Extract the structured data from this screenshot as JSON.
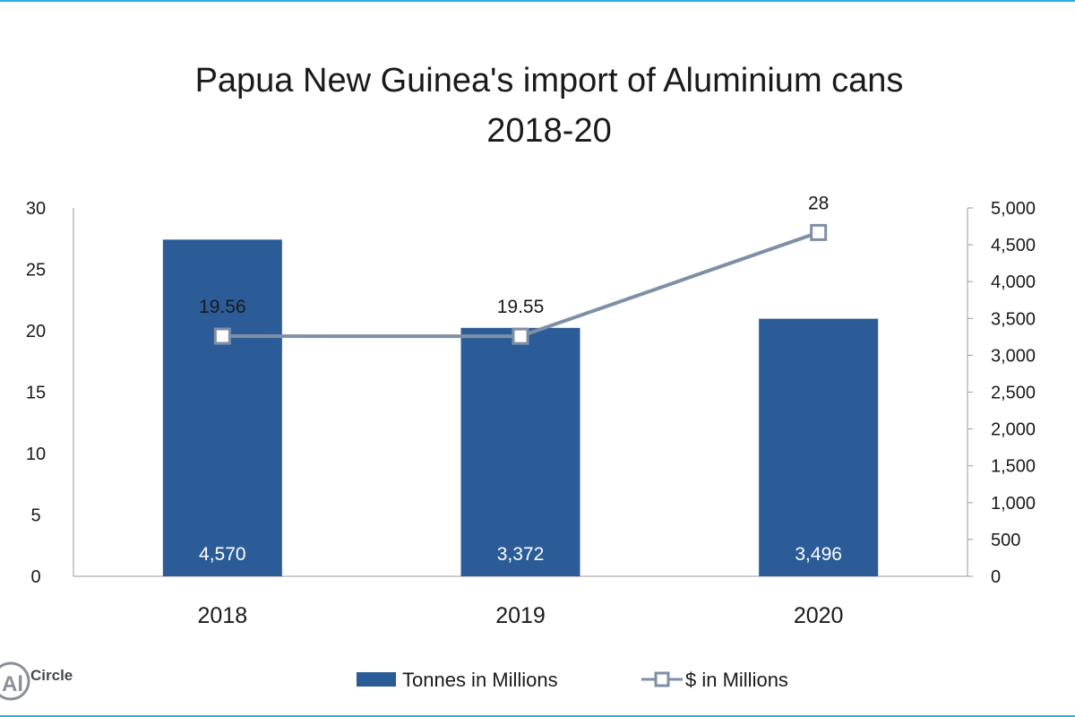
{
  "logo": {
    "mark": "Al",
    "name": "Circle"
  },
  "colors": {
    "bar": "#2b5c98",
    "line": "#7f8fa6",
    "accent_border": "#29aee0"
  },
  "chart_data": {
    "type": "bar",
    "title": "Papua New Guinea's import of Aluminium cans",
    "subtitle": "2018-20",
    "categories": [
      "2018",
      "2019",
      "2020"
    ],
    "series": [
      {
        "name": "Tonnes in Millions",
        "type": "bar",
        "axis": "right",
        "values": [
          4570,
          3372,
          3496
        ],
        "value_labels": [
          "4,570",
          "3,372",
          "3,496"
        ]
      },
      {
        "name": "$ in Millions",
        "type": "line",
        "axis": "left",
        "values": [
          19.56,
          19.55,
          28
        ],
        "value_labels": [
          "19.56",
          "19.55",
          "28"
        ]
      }
    ],
    "y_left": {
      "min": 0,
      "max": 30,
      "step": 5,
      "tick_labels": [
        "0",
        "5",
        "10",
        "15",
        "20",
        "25",
        "30"
      ]
    },
    "y_right": {
      "min": 0,
      "max": 5000,
      "step": 500,
      "tick_labels": [
        "0",
        "500",
        "1,000",
        "1,500",
        "2,000",
        "2,500",
        "3,000",
        "3,500",
        "4,000",
        "4,500",
        "5,000"
      ]
    },
    "legend_position": "bottom",
    "grid": false
  }
}
